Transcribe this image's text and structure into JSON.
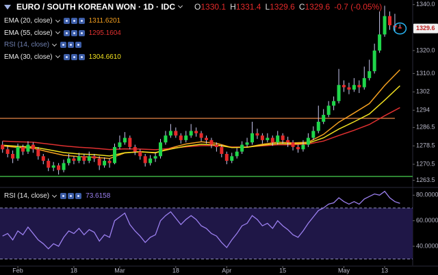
{
  "chart_data": [
    {
      "type": "candlestick",
      "title": "EURO / SOUTH KOREAN WON · 1D · IDC",
      "fields": [
        "O",
        "H",
        "L",
        "C"
      ],
      "change": "-0.7 (-0.05%)",
      "up_color": "#1fd64a",
      "down_color": "#e52a2a",
      "wick_color": "#c8c8f0",
      "open": [
        1279,
        1277,
        1275,
        1273,
        1278,
        1276,
        1279,
        1277,
        1274,
        1272,
        1269,
        1270,
        1268,
        1271,
        1273,
        1272,
        1274,
        1272,
        1274,
        1273,
        1270,
        1272,
        1271,
        1278,
        1280,
        1282,
        1278,
        1276,
        1274,
        1271,
        1273,
        1274,
        1280,
        1283,
        1285,
        1283,
        1281,
        1283,
        1285,
        1284,
        1282,
        1281,
        1279,
        1278,
        1275,
        1272,
        1274,
        1276,
        1279,
        1280,
        1284,
        1283,
        1281,
        1282,
        1280,
        1283,
        1281,
        1280,
        1278,
        1277,
        1279,
        1282,
        1285,
        1289,
        1292,
        1296,
        1298,
        1305,
        1304,
        1303,
        1305,
        1304,
        1308,
        1311,
        1320,
        1327,
        1335,
        1331,
        1330.1
      ],
      "high": [
        1280.5,
        1278.5,
        1276.5,
        1279.5,
        1279,
        1280.5,
        1280,
        1278,
        1275,
        1273,
        1271.5,
        1271,
        1272.5,
        1275,
        1274,
        1275.5,
        1275,
        1276,
        1275,
        1274,
        1273.5,
        1273,
        1279.5,
        1283,
        1284.5,
        1283,
        1279,
        1277,
        1275,
        1274.5,
        1275.5,
        1281.5,
        1285,
        1288,
        1286.5,
        1284,
        1285,
        1288,
        1286.5,
        1285,
        1283,
        1282,
        1280,
        1279,
        1276,
        1275.5,
        1277.5,
        1280.5,
        1282,
        1289,
        1286,
        1284,
        1284,
        1283,
        1285,
        1284,
        1282.5,
        1281,
        1279,
        1281,
        1284,
        1287,
        1296,
        1294.5,
        1298,
        1300,
        1312,
        1307,
        1306,
        1308,
        1307,
        1313,
        1316,
        1323,
        1337,
        1339.5,
        1337,
        1336,
        1331.4
      ],
      "low": [
        1275.5,
        1273.5,
        1271,
        1272,
        1274.5,
        1275,
        1275.5,
        1272.5,
        1270.5,
        1267.5,
        1267.5,
        1266,
        1267,
        1270,
        1270.5,
        1271,
        1270.5,
        1271,
        1271.5,
        1268,
        1269,
        1269,
        1270.5,
        1277,
        1279,
        1277,
        1274.5,
        1272.5,
        1269.5,
        1270,
        1271.5,
        1273,
        1279,
        1282,
        1282,
        1279.5,
        1280,
        1282,
        1282.5,
        1280.5,
        1279.5,
        1277.5,
        1276,
        1273.5,
        1270.5,
        1271,
        1273,
        1275,
        1278,
        1279,
        1281.5,
        1279.5,
        1280,
        1278.5,
        1279,
        1279.5,
        1278,
        1276.5,
        1275.5,
        1276,
        1278,
        1281,
        1284,
        1288,
        1291,
        1294,
        1297,
        1302,
        1301,
        1302,
        1301.5,
        1303,
        1307,
        1310,
        1319,
        1326,
        1329,
        1328.5,
        1329.6
      ],
      "close": [
        1277,
        1275,
        1273,
        1278,
        1276,
        1279,
        1277,
        1274,
        1272,
        1269,
        1270,
        1268,
        1271,
        1273,
        1272,
        1274,
        1272,
        1274,
        1273,
        1270,
        1272,
        1271,
        1278,
        1280,
        1282,
        1278,
        1276,
        1274,
        1271,
        1273,
        1274,
        1280,
        1283,
        1285,
        1283,
        1281,
        1283,
        1285,
        1284,
        1282,
        1281,
        1279,
        1278,
        1275,
        1272,
        1274,
        1276,
        1279,
        1280,
        1284,
        1283,
        1281,
        1282,
        1280,
        1283,
        1281,
        1280,
        1278,
        1277,
        1279,
        1282,
        1285,
        1289,
        1292,
        1296,
        1298,
        1305,
        1304,
        1303,
        1305,
        1304,
        1308,
        1311,
        1320,
        1327,
        1335,
        1331,
        1330.1,
        1329.6
      ],
      "line_x": [
        0,
        3,
        6,
        9,
        12,
        15,
        18,
        21,
        24,
        27,
        30,
        33,
        36,
        39,
        42,
        45,
        48,
        51,
        54,
        57,
        60,
        63,
        66,
        69,
        72,
        75,
        78
      ],
      "series": [
        {
          "name": "EMA (20, close)",
          "color": "#f5a020",
          "values": [
            1278.5,
            1277.8,
            1277.5,
            1275.9,
            1274.4,
            1273.8,
            1273.6,
            1273.0,
            1275.4,
            1276.0,
            1275.4,
            1277.6,
            1279.3,
            1280.3,
            1279.6,
            1277.8,
            1277.9,
            1279.2,
            1280.1,
            1279.8,
            1280.1,
            1283.5,
            1288.8,
            1292.8,
            1296.9,
            1304.8,
            1311.6201
          ]
        },
        {
          "name": "EMA (55, close)",
          "color": "#e03030",
          "values": [
            1280.6,
            1280.3,
            1280.1,
            1279.3,
            1278.5,
            1277.9,
            1277.5,
            1276.9,
            1277.2,
            1277.1,
            1276.8,
            1277.4,
            1278.1,
            1278.6,
            1278.6,
            1278.0,
            1278.0,
            1278.5,
            1279.0,
            1279.0,
            1279.3,
            1280.6,
            1283.0,
            1285.3,
            1287.8,
            1291.6,
            1295.1604
          ]
        },
        {
          "name": "RSI (14, close)",
          "hidden": true
        },
        {
          "name": "EMA (30, close)",
          "color": "#f0e020",
          "values": [
            1278.8,
            1278.3,
            1278.0,
            1276.8,
            1275.6,
            1275.0,
            1274.7,
            1274.1,
            1275.5,
            1275.9,
            1275.6,
            1277.1,
            1278.4,
            1279.2,
            1278.9,
            1277.8,
            1277.9,
            1278.8,
            1279.5,
            1279.4,
            1279.7,
            1282.0,
            1285.8,
            1289.0,
            1292.4,
            1298.4,
            1304.661
          ],
          "value_labels": [
            null,
            null,
            null,
            null,
            null,
            null,
            null,
            null,
            null,
            null,
            null,
            null,
            null,
            null,
            null,
            null,
            null,
            null,
            null,
            null,
            null,
            null,
            null,
            null,
            null,
            null,
            "1304.6610"
          ]
        }
      ],
      "levels": [
        {
          "value": 1290.5,
          "color": "#c0703a",
          "xlim": [
            -0.5,
            77
          ]
        },
        {
          "value": 1265.2,
          "color": "#3cb043",
          "xlim": [
            -0.5,
            80.5
          ]
        }
      ],
      "xlim": [
        -0.5,
        80.5
      ],
      "xticks": [
        {
          "value": 3,
          "label": "Feb"
        },
        {
          "value": 14,
          "label": "18"
        },
        {
          "value": 23,
          "label": "Mar"
        },
        {
          "value": 34,
          "label": "18"
        },
        {
          "value": 44,
          "label": "Apr"
        },
        {
          "value": 55,
          "label": "15"
        },
        {
          "value": 67,
          "label": "May"
        },
        {
          "value": 75,
          "label": "13"
        }
      ],
      "ylim": [
        1261,
        1342
      ],
      "yticks": [
        {
          "value": 1340,
          "label": "1340.0"
        },
        {
          "value": 1320,
          "label": "1320.0"
        },
        {
          "value": 1310,
          "label": "1310.0"
        },
        1302,
        1294,
        1286.5,
        1278.5,
        1270.5,
        1263.5
      ]
    },
    {
      "type": "line",
      "series": [
        {
          "name": "RSI (14, close)",
          "color": "#9c80f0",
          "values": [
            48,
            50,
            45,
            52,
            49,
            55,
            50,
            45,
            42,
            38,
            42,
            40,
            47,
            52,
            50,
            54,
            49,
            53,
            51,
            44,
            49,
            47,
            60,
            63,
            66,
            57,
            52,
            48,
            43,
            47,
            49,
            60,
            64,
            67,
            62,
            57,
            61,
            64,
            61,
            56,
            54,
            50,
            48,
            43,
            39,
            45,
            50,
            56,
            58,
            64,
            61,
            56,
            58,
            54,
            60,
            56,
            53,
            49,
            47,
            52,
            58,
            63,
            68,
            70,
            73,
            74,
            78,
            75,
            73,
            75,
            73,
            77,
            79,
            81,
            80,
            83,
            78,
            75,
            73.6158
          ]
        }
      ],
      "levels": [
        70,
        30
      ],
      "band_color": "#1f1747",
      "ylim": [
        25,
        85
      ],
      "yticks": [
        {
          "value": 80,
          "label": "80.0000"
        },
        {
          "value": 60,
          "label": "60.0000"
        },
        {
          "value": 40,
          "label": "40.0000"
        }
      ]
    }
  ]
}
